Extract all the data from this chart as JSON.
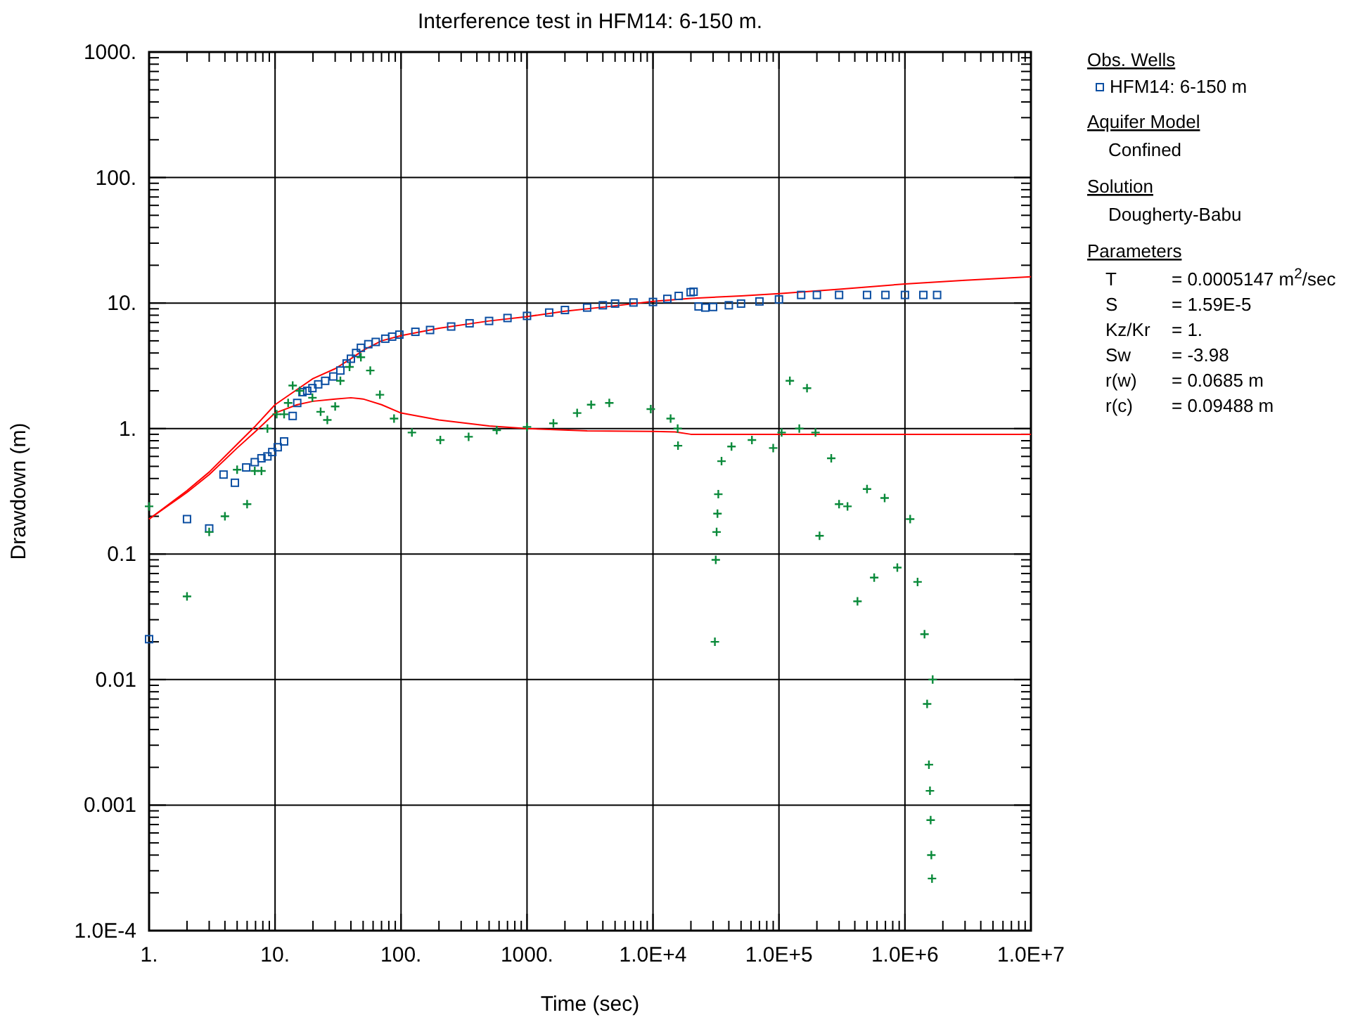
{
  "chart_data": {
    "type": "scatter",
    "title": "Interference test in HFM14: 6-150 m.",
    "xlabel": "Time (sec)",
    "ylabel": "Drawdown (m)",
    "log": "xy",
    "grid": true,
    "legend": "right",
    "legend_title": "Obs. Wells",
    "xlim": [
      1,
      10000000
    ],
    "ylim": [
      0.0001,
      1000
    ],
    "xticks": [
      {
        "value": 1,
        "label": "1."
      },
      {
        "value": 2,
        "label": null
      },
      {
        "value": 3,
        "label": null
      },
      {
        "value": 4,
        "label": null
      },
      {
        "value": 5,
        "label": null
      },
      {
        "value": 6,
        "label": null
      },
      {
        "value": 7,
        "label": null
      },
      {
        "value": 8,
        "label": null
      },
      {
        "value": 9,
        "label": null
      },
      {
        "value": 10,
        "label": "10."
      },
      {
        "value": 20,
        "label": null
      },
      {
        "value": 30,
        "label": null
      },
      {
        "value": 40,
        "label": null
      },
      {
        "value": 50,
        "label": null
      },
      {
        "value": 60,
        "label": null
      },
      {
        "value": 70,
        "label": null
      },
      {
        "value": 80,
        "label": null
      },
      {
        "value": 90,
        "label": null
      },
      {
        "value": 100,
        "label": "100."
      },
      {
        "value": 200,
        "label": null
      },
      {
        "value": 300,
        "label": null
      },
      {
        "value": 400,
        "label": null
      },
      {
        "value": 500,
        "label": null
      },
      {
        "value": 600,
        "label": null
      },
      {
        "value": 700,
        "label": null
      },
      {
        "value": 800,
        "label": null
      },
      {
        "value": 900,
        "label": null
      },
      {
        "value": 1000,
        "label": "1000."
      },
      {
        "value": 2000,
        "label": null
      },
      {
        "value": 3000,
        "label": null
      },
      {
        "value": 4000,
        "label": null
      },
      {
        "value": 5000,
        "label": null
      },
      {
        "value": 6000,
        "label": null
      },
      {
        "value": 7000,
        "label": null
      },
      {
        "value": 8000,
        "label": null
      },
      {
        "value": 9000,
        "label": null
      },
      {
        "value": 10000,
        "label": "1.0E+4"
      },
      {
        "value": 20000,
        "label": null
      },
      {
        "value": 30000,
        "label": null
      },
      {
        "value": 40000,
        "label": null
      },
      {
        "value": 50000,
        "label": null
      },
      {
        "value": 60000,
        "label": null
      },
      {
        "value": 70000,
        "label": null
      },
      {
        "value": 80000,
        "label": null
      },
      {
        "value": 90000,
        "label": null
      },
      {
        "value": 100000,
        "label": "1.0E+5"
      },
      {
        "value": 200000,
        "label": null
      },
      {
        "value": 300000,
        "label": null
      },
      {
        "value": 400000,
        "label": null
      },
      {
        "value": 500000,
        "label": null
      },
      {
        "value": 600000,
        "label": null
      },
      {
        "value": 700000,
        "label": null
      },
      {
        "value": 800000,
        "label": null
      },
      {
        "value": 900000,
        "label": null
      },
      {
        "value": 1000000,
        "label": "1.0E+6"
      },
      {
        "value": 2000000,
        "label": null
      },
      {
        "value": 3000000,
        "label": null
      },
      {
        "value": 4000000,
        "label": null
      },
      {
        "value": 5000000,
        "label": null
      },
      {
        "value": 6000000,
        "label": null
      },
      {
        "value": 7000000,
        "label": null
      },
      {
        "value": 8000000,
        "label": null
      },
      {
        "value": 9000000,
        "label": null
      },
      {
        "value": 10000000,
        "label": "1.0E+7"
      }
    ],
    "yticks": [
      {
        "value": 0.0001,
        "label": "1.0E-4"
      },
      {
        "value": 0.0002,
        "label": null
      },
      {
        "value": 0.0003,
        "label": null
      },
      {
        "value": 0.0004,
        "label": null
      },
      {
        "value": 0.0005,
        "label": null
      },
      {
        "value": 0.0006,
        "label": null
      },
      {
        "value": 0.0007,
        "label": null
      },
      {
        "value": 0.0008,
        "label": null
      },
      {
        "value": 0.0009,
        "label": null
      },
      {
        "value": 0.001,
        "label": "0.001"
      },
      {
        "value": 0.002,
        "label": null
      },
      {
        "value": 0.003,
        "label": null
      },
      {
        "value": 0.004,
        "label": null
      },
      {
        "value": 0.005,
        "label": null
      },
      {
        "value": 0.006,
        "label": null
      },
      {
        "value": 0.007,
        "label": null
      },
      {
        "value": 0.008,
        "label": null
      },
      {
        "value": 0.009,
        "label": null
      },
      {
        "value": 0.01,
        "label": "0.01"
      },
      {
        "value": 0.02,
        "label": null
      },
      {
        "value": 0.03,
        "label": null
      },
      {
        "value": 0.04,
        "label": null
      },
      {
        "value": 0.05,
        "label": null
      },
      {
        "value": 0.06,
        "label": null
      },
      {
        "value": 0.07,
        "label": null
      },
      {
        "value": 0.08,
        "label": null
      },
      {
        "value": 0.09,
        "label": null
      },
      {
        "value": 0.1,
        "label": "0.1"
      },
      {
        "value": 0.2,
        "label": null
      },
      {
        "value": 0.3,
        "label": null
      },
      {
        "value": 0.4,
        "label": null
      },
      {
        "value": 0.5,
        "label": null
      },
      {
        "value": 0.6,
        "label": null
      },
      {
        "value": 0.7,
        "label": null
      },
      {
        "value": 0.8,
        "label": null
      },
      {
        "value": 0.9,
        "label": null
      },
      {
        "value": 1,
        "label": "1."
      },
      {
        "value": 2,
        "label": null
      },
      {
        "value": 3,
        "label": null
      },
      {
        "value": 4,
        "label": null
      },
      {
        "value": 5,
        "label": null
      },
      {
        "value": 6,
        "label": null
      },
      {
        "value": 7,
        "label": null
      },
      {
        "value": 8,
        "label": null
      },
      {
        "value": 9,
        "label": null
      },
      {
        "value": 10,
        "label": "10."
      },
      {
        "value": 20,
        "label": null
      },
      {
        "value": 30,
        "label": null
      },
      {
        "value": 40,
        "label": null
      },
      {
        "value": 50,
        "label": null
      },
      {
        "value": 60,
        "label": null
      },
      {
        "value": 70,
        "label": null
      },
      {
        "value": 80,
        "label": null
      },
      {
        "value": 90,
        "label": null
      },
      {
        "value": 100,
        "label": "100."
      },
      {
        "value": 200,
        "label": null
      },
      {
        "value": 300,
        "label": null
      },
      {
        "value": 400,
        "label": null
      },
      {
        "value": 500,
        "label": null
      },
      {
        "value": 600,
        "label": null
      },
      {
        "value": 700,
        "label": null
      },
      {
        "value": 800,
        "label": null
      },
      {
        "value": 900,
        "label": null
      },
      {
        "value": 1000,
        "label": "1000."
      }
    ],
    "series": [
      {
        "type": "line",
        "color": "#ff0000",
        "marker": "none",
        "x": [
          1,
          2,
          3,
          5,
          7,
          10,
          15,
          20,
          30,
          40,
          50,
          70,
          100,
          200,
          500,
          1000,
          2000,
          5000,
          10000,
          20000,
          50000,
          100000,
          300000,
          1000000,
          3000000,
          10000000
        ],
        "values": [
          0.19,
          0.32,
          0.45,
          0.75,
          1.05,
          1.55,
          2.05,
          2.5,
          3.0,
          3.6,
          4.2,
          5.0,
          5.5,
          6.3,
          7.2,
          7.8,
          8.6,
          9.5,
          10.3,
          10.9,
          11.4,
          11.9,
          12.9,
          14.2,
          15.2,
          16.2
        ]
      },
      {
        "type": "line",
        "color": "#ff0000",
        "marker": "none",
        "x": [
          1,
          2,
          3,
          5,
          7,
          10,
          15,
          20,
          30,
          40,
          50,
          70,
          100,
          200,
          500,
          1000,
          3000,
          10000,
          15000,
          20000,
          30000,
          100000,
          1000000,
          10000000
        ],
        "values": [
          0.19,
          0.31,
          0.43,
          0.7,
          0.95,
          1.33,
          1.55,
          1.65,
          1.72,
          1.76,
          1.72,
          1.55,
          1.33,
          1.17,
          1.05,
          1.0,
          0.96,
          0.95,
          0.94,
          0.9,
          0.9,
          0.9,
          0.9,
          0.9
        ]
      },
      {
        "name": "HFM14: 6-150 m",
        "color": "#0b4ea2",
        "marker": "square",
        "x": [
          1,
          2,
          3,
          3.9,
          4.8,
          5.9,
          6.9,
          7.8,
          8.7,
          9.5,
          10.5,
          11.8,
          13.8,
          15,
          16.5,
          18,
          19.8,
          22,
          25,
          29,
          33,
          37,
          40,
          44,
          48,
          55,
          63,
          75,
          85,
          97,
          130,
          170,
          250,
          350,
          500,
          700,
          1000,
          1500,
          2000,
          3000,
          4000,
          5000,
          7000,
          10000,
          13000,
          16000,
          19900,
          21000,
          23000,
          26000,
          30000,
          40000,
          50000,
          70000,
          100000,
          150000,
          200000,
          300000,
          500000,
          700000,
          1000000,
          1400000,
          1800000
        ],
        "values": [
          0.021,
          0.19,
          0.16,
          0.43,
          0.37,
          0.49,
          0.54,
          0.58,
          0.6,
          0.65,
          0.71,
          0.79,
          1.26,
          1.6,
          1.95,
          2.0,
          2.1,
          2.25,
          2.4,
          2.6,
          2.9,
          3.3,
          3.6,
          4.0,
          4.4,
          4.7,
          4.9,
          5.2,
          5.4,
          5.6,
          5.9,
          6.1,
          6.5,
          6.9,
          7.2,
          7.6,
          7.9,
          8.4,
          8.8,
          9.2,
          9.6,
          9.9,
          10.1,
          10.2,
          10.8,
          11.4,
          12.2,
          12.3,
          9.4,
          9.2,
          9.3,
          9.6,
          9.9,
          10.3,
          10.7,
          11.6,
          11.6,
          11.6,
          11.6,
          11.6,
          11.6,
          11.6,
          11.6
        ]
      },
      {
        "color": "#0a8a3a",
        "marker": "cross",
        "x": [
          1,
          2,
          3,
          4,
          5,
          6,
          6.9,
          7.8,
          8.7,
          10.3,
          11.8,
          12.7,
          13.8,
          15.7,
          19.8,
          23,
          26,
          30,
          33,
          39,
          48,
          57,
          68,
          88,
          122,
          205,
          344,
          575,
          1000,
          1620,
          2500,
          3230,
          4500,
          9600,
          13800,
          15700,
          15800,
          31000,
          31500,
          32000,
          32500,
          33000,
          35000,
          42000,
          61000,
          90000,
          105000,
          122000,
          145000,
          167000,
          195000,
          210000,
          260000,
          300000,
          350000,
          420000,
          500000,
          570000,
          690000,
          870000,
          1100000,
          1260000,
          1430000,
          1500000,
          1550000,
          1580000,
          1600000,
          1620000,
          1640000,
          1660000
        ],
        "values": [
          0.24,
          0.046,
          0.15,
          0.2,
          0.47,
          0.25,
          0.46,
          0.46,
          1.0,
          1.3,
          1.3,
          1.6,
          2.2,
          2.0,
          1.76,
          1.36,
          1.17,
          1.5,
          2.4,
          3.1,
          3.7,
          2.9,
          1.86,
          1.2,
          0.93,
          0.81,
          0.86,
          0.97,
          1.03,
          1.1,
          1.33,
          1.55,
          1.6,
          1.43,
          1.2,
          1.0,
          0.73,
          0.02,
          0.09,
          0.15,
          0.21,
          0.3,
          0.55,
          0.72,
          0.81,
          0.7,
          0.93,
          2.4,
          1.0,
          2.1,
          0.93,
          0.14,
          0.58,
          0.25,
          0.24,
          0.042,
          0.33,
          0.065,
          0.28,
          0.078,
          0.19,
          0.06,
          0.023,
          0.0064,
          0.0021,
          0.0013,
          0.00076,
          0.0004,
          0.00026,
          0.01
        ]
      }
    ],
    "annotations": [
      "Aquifer Model",
      "Confined",
      "Solution",
      "Dougherty-Babu",
      "Parameters",
      "T = 0.0005147 m$^{2}$/sec",
      "S = 1.59E-5",
      "Kz/Kr = 1.",
      "Sw = -3.98",
      "r(w) = 0.0685 m",
      "r(c) = 0.09488 m"
    ]
  }
}
